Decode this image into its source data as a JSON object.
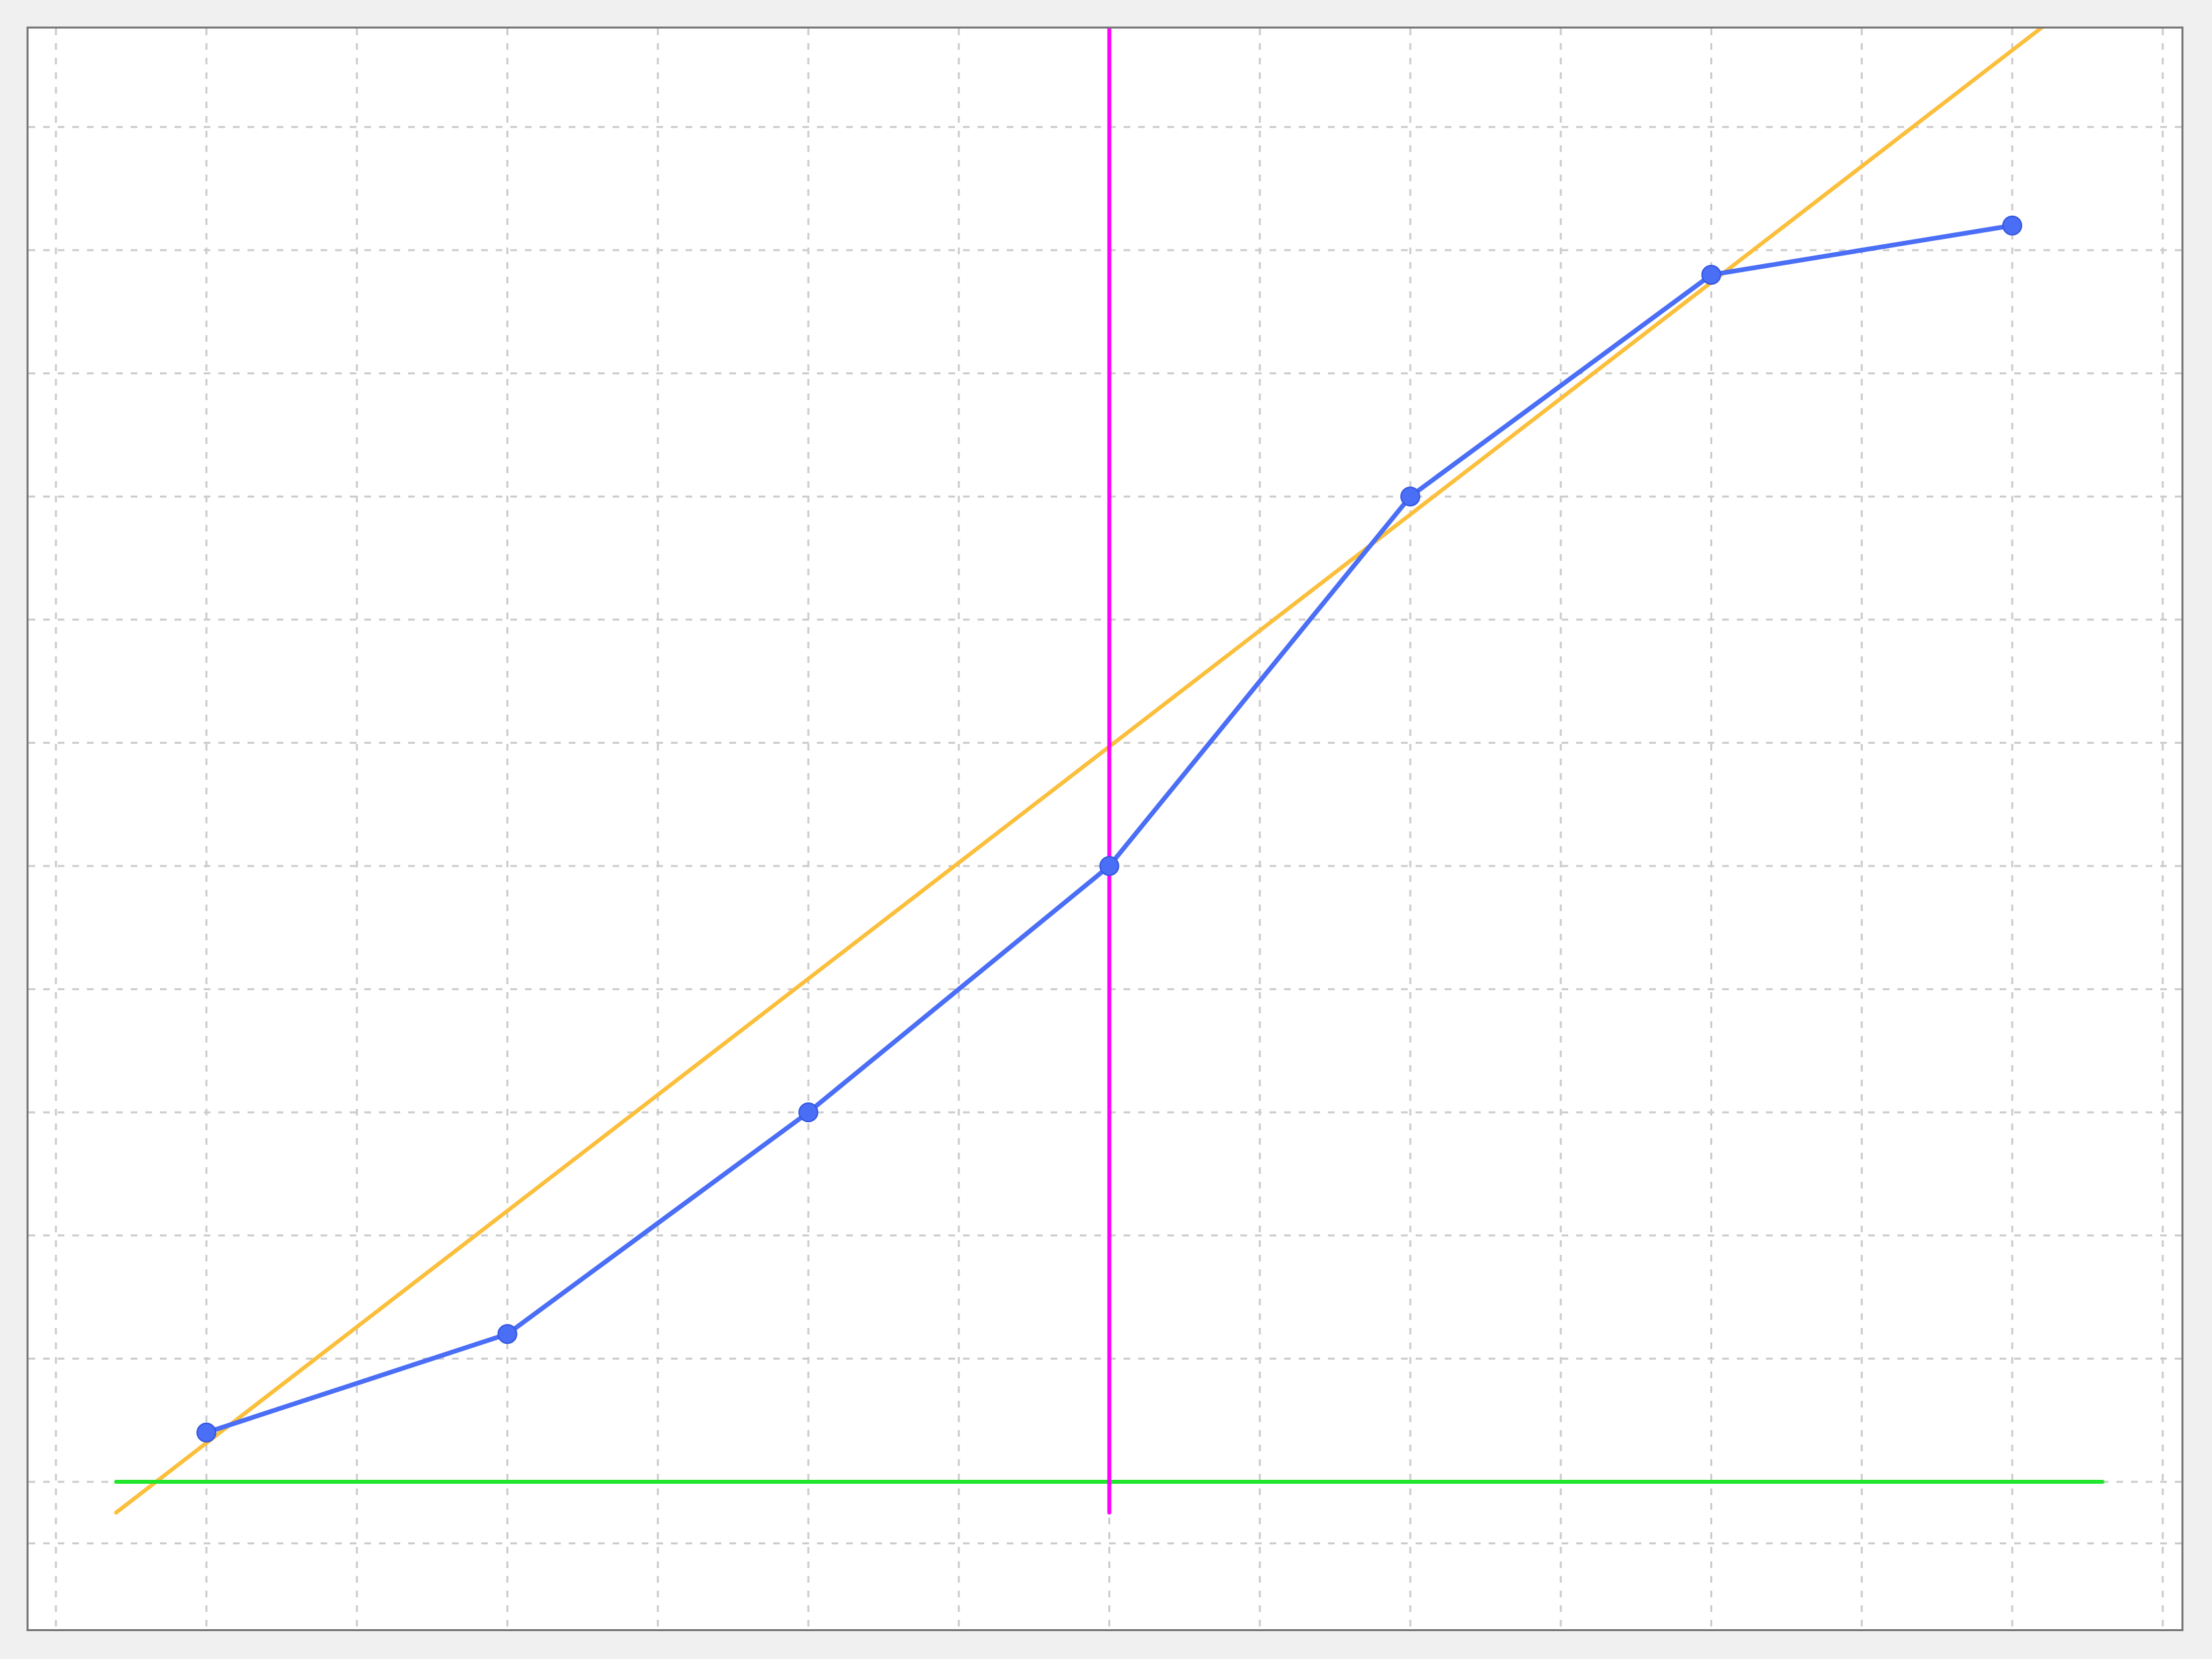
{
  "chart_data": {
    "type": "line",
    "title": "",
    "xlabel": "",
    "ylabel": "",
    "xlim": [
      -0.3,
      6.6
    ],
    "ylim": [
      -0.1,
      5.0
    ],
    "grid": true,
    "grid_x": [
      -0.5,
      0,
      0.5,
      1,
      1.5,
      2,
      2.5,
      3,
      3.5,
      4,
      4.5,
      5,
      5.5,
      6,
      6.5
    ],
    "grid_y": [
      -0.2,
      0,
      0.4,
      0.8,
      1.2,
      1.6,
      2.0,
      2.4,
      2.8,
      3.2,
      3.6,
      4.0,
      4.4,
      4.8
    ],
    "series": [
      {
        "name": "",
        "color": "#4a6ef5",
        "markers": true,
        "x": [
          0,
          1,
          2,
          3,
          4,
          5,
          6
        ],
        "y": [
          0.16,
          0.48,
          1.2,
          2.0,
          3.2,
          3.92,
          4.08
        ]
      }
    ],
    "reference_lines": [
      {
        "kind": "fit",
        "color": "#fbbf3c",
        "x": [
          -0.3,
          6.2
        ],
        "y": [
          -0.1,
          4.8
        ]
      },
      {
        "kind": "horizontal",
        "color": "#22e62d",
        "y": 0.0,
        "x": [
          -0.3,
          6.3
        ]
      },
      {
        "kind": "vertical",
        "color": "#ff00ff",
        "x": 3.0,
        "y": [
          -0.1,
          4.8
        ]
      }
    ],
    "colors": {
      "grid": "#cccccc",
      "border": "#777777",
      "background": "#ffffff"
    }
  }
}
